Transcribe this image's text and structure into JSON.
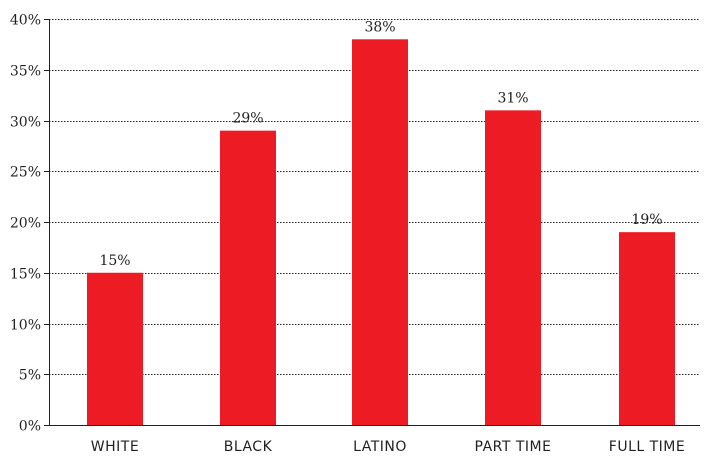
{
  "chart_data": {
    "type": "bar",
    "title": "",
    "xlabel": "",
    "ylabel": "",
    "categories": [
      "WHITE",
      "BLACK",
      "LATINO",
      "PART TIME",
      "FULL TIME"
    ],
    "values": [
      15,
      29,
      38,
      31,
      19
    ],
    "data_labels": [
      "15%",
      "29%",
      "38%",
      "31%",
      "19%"
    ],
    "ylim": [
      0,
      40
    ],
    "yticks": [
      0,
      5,
      10,
      15,
      20,
      25,
      30,
      35,
      40
    ],
    "ytick_labels": [
      "0%",
      "5%",
      "10%",
      "15%",
      "20%",
      "25%",
      "30%",
      "35%",
      "40%"
    ],
    "grid": true,
    "legend": "none",
    "colors": {
      "bar": "#ed1c24",
      "text": "#231f20"
    }
  }
}
